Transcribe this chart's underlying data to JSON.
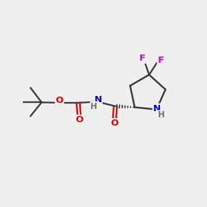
{
  "background_color": "#efefef",
  "bond_color": "#3a3a3a",
  "atom_colors": {
    "O": "#e00000",
    "N": "#0000cc",
    "F": "#cc00cc",
    "H": "#707070",
    "C": "#3a3a3a"
  },
  "font_size_atom": 9.5,
  "font_size_H": 8.5,
  "figsize": [
    3.0,
    3.0
  ],
  "dpi": 100,
  "lw": 1.5
}
